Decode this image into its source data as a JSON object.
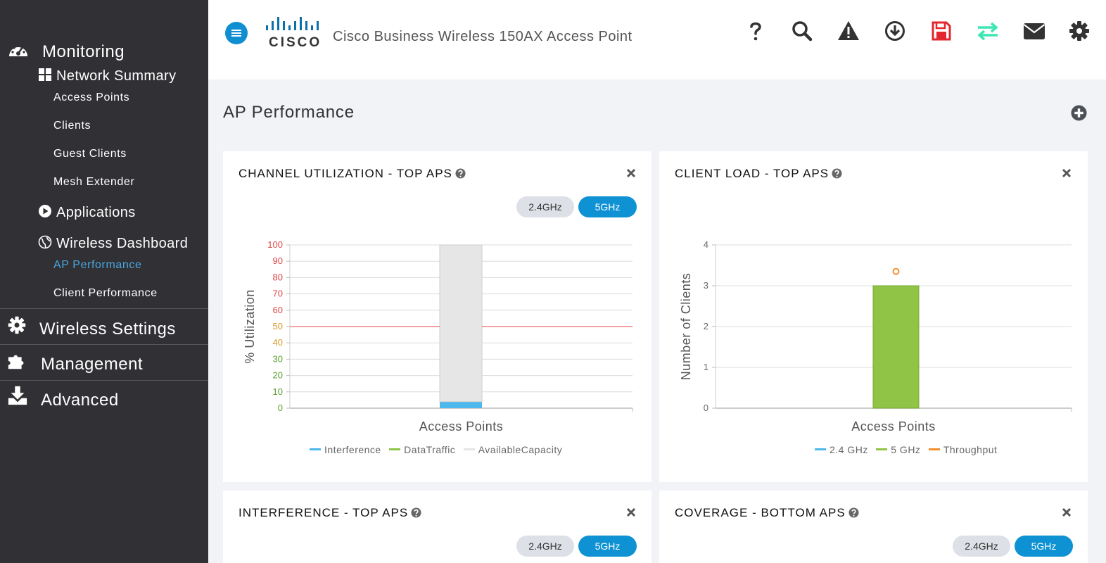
{
  "header": {
    "logo_text": "CISCO",
    "app_title": "Cisco Business Wireless 150AX Access Point",
    "icons": [
      "help-icon",
      "search-icon",
      "alert-icon",
      "download-icon",
      "save-icon",
      "transfer-icon",
      "mail-icon",
      "settings-icon"
    ],
    "save_color": "#e3262f",
    "transfer_color": "#3ee6b4"
  },
  "sidebar": {
    "monitoring": "Monitoring",
    "network_summary": "Network Summary",
    "access_points": "Access Points",
    "clients": "Clients",
    "guest_clients": "Guest Clients",
    "mesh_extender": "Mesh Extender",
    "applications": "Applications",
    "wireless_dashboard": "Wireless Dashboard",
    "ap_performance": "AP Performance",
    "client_performance": "Client Performance",
    "wireless_settings": "Wireless Settings",
    "management": "Management",
    "advanced": "Advanced",
    "active_color": "#4aa8e0"
  },
  "main": {
    "page_title": "AP Performance"
  },
  "cards": {
    "channel": {
      "title": "CHANNEL UTILIZATION - TOP APS",
      "band_24": "2.4GHz",
      "band_5": "5GHz",
      "selected": "5GHz"
    },
    "client": {
      "title": "CLIENT LOAD - TOP APS"
    },
    "interference": {
      "title": "INTERFERENCE - TOP APS",
      "band_24": "2.4GHz",
      "band_5": "5GHz",
      "selected": "5GHz"
    },
    "coverage": {
      "title": "COVERAGE - BOTTOM APS",
      "band_24": "2.4GHz",
      "band_5": "5GHz",
      "selected": "5GHz"
    }
  },
  "chart_data": [
    {
      "type": "bar",
      "title": "CHANNEL UTILIZATION - TOP APS",
      "xlabel": "Access Points",
      "ylabel": "% Utilization",
      "ylim": [
        0,
        100
      ],
      "yticks": [
        "0",
        "10",
        "20",
        "30",
        "40",
        "50",
        "60",
        "70",
        "80",
        "90",
        "100"
      ],
      "ytick_colors": [
        "#5a9e2f",
        "#5a9e2f",
        "#5a9e2f",
        "#5a9e2f",
        "#d49a2a",
        "#d49a2a",
        "#e04545",
        "#e04545",
        "#e04545",
        "#e04545",
        "#e04545"
      ],
      "threshold": 50,
      "threshold_color": "#e04545",
      "stacked": true,
      "series": [
        {
          "name": "Interference",
          "color": "#4db8ec",
          "values": [
            4
          ]
        },
        {
          "name": "DataTraffic",
          "color": "#8fc447",
          "values": [
            0
          ]
        },
        {
          "name": "AvailableCapacity",
          "color": "#e6e6e6",
          "values": [
            96
          ]
        }
      ],
      "grid": true,
      "legend": "bottom"
    },
    {
      "type": "bar",
      "title": "CLIENT LOAD - TOP APS",
      "xlabel": "Access Points",
      "ylabel": "Number of Clients",
      "ylim": [
        0,
        4
      ],
      "yticks": [
        "0",
        "1",
        "2",
        "3",
        "4"
      ],
      "series": [
        {
          "name": "2.4 GHz",
          "color": "#4db8ec",
          "values": [
            0
          ]
        },
        {
          "name": "5 GHz",
          "color": "#8fc447",
          "values": [
            3
          ]
        },
        {
          "name": "Throughput",
          "color": "#f3902e",
          "values": [
            3.35
          ]
        }
      ],
      "grid": true,
      "legend": "bottom"
    }
  ]
}
